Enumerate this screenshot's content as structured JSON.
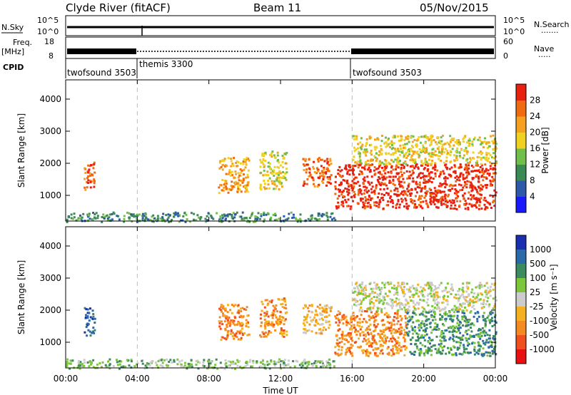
{
  "header": {
    "station": "Clyde River (fitACF)",
    "beam": "Beam 11",
    "date": "05/Nov/2015"
  },
  "top_strip": {
    "nsky_label": "N.Sky",
    "nsky_ticks": [
      "10^5",
      "10^0"
    ],
    "nsearch_label": "N.Search",
    "nsearch_ticks": [
      "10^5",
      "10^0"
    ],
    "freq_label": "Freq.",
    "freq_unit": "[MHz]",
    "freq_ticks": [
      "18",
      "8"
    ],
    "nave_label": "Nave",
    "nave_ticks": [
      "60",
      "0"
    ],
    "cpid_label": "CPID",
    "cpid_modes": [
      {
        "name": "twofsound 3503",
        "start_hr": 0
      },
      {
        "name": "themis 3300",
        "start_hr": 4
      },
      {
        "name": "twofsound 3503",
        "start_hr": 16
      }
    ]
  },
  "chart_data": [
    {
      "type": "heatmap",
      "panel": "power",
      "ylabel": "Slant Range [km]",
      "xlim": [
        0,
        24
      ],
      "ylim": [
        200,
        4600
      ],
      "yticks": [
        1000,
        2000,
        3000,
        4000
      ],
      "colorbar": {
        "label": "Power [dB]",
        "ticks": [
          "4",
          "8",
          "12",
          "16",
          "20",
          "24",
          "28"
        ],
        "colors": [
          "#1a1aff",
          "#2d5aa8",
          "#3a8a55",
          "#6fbf4a",
          "#f0d020",
          "#f5a020",
          "#f06a10",
          "#e82010"
        ]
      },
      "echo_regions": [
        {
          "t0": 1.0,
          "t1": 1.6,
          "r0": 1200,
          "r1": 2100,
          "level": 6
        },
        {
          "t0": 8.5,
          "t1": 10.2,
          "r0": 1100,
          "r1": 2200,
          "level": 5
        },
        {
          "t0": 10.8,
          "t1": 12.3,
          "r0": 1200,
          "r1": 2400,
          "level": 4
        },
        {
          "t0": 13.2,
          "t1": 14.8,
          "r0": 1300,
          "r1": 2200,
          "level": 6
        },
        {
          "t0": 15.0,
          "t1": 24.0,
          "r0": 600,
          "r1": 2000,
          "level": 7
        },
        {
          "t0": 16.0,
          "t1": 24.0,
          "r0": 2000,
          "r1": 2900,
          "level": 4
        },
        {
          "t0": 0.0,
          "t1": 15.0,
          "r0": 200,
          "r1": 500,
          "level": 2
        }
      ]
    },
    {
      "type": "heatmap",
      "panel": "velocity",
      "ylabel": "Slant Range [km]",
      "xlabel": "Time UT",
      "xlim": [
        0,
        24
      ],
      "ylim": [
        200,
        4600
      ],
      "yticks": [
        1000,
        2000,
        3000,
        4000
      ],
      "xticks": [
        "00:00",
        "04:00",
        "08:00",
        "12:00",
        "16:00",
        "20:00",
        "00:00"
      ],
      "colorbar": {
        "label": "Velocity [m s⁻¹]",
        "ticks": [
          "1000",
          "500",
          "100",
          "25",
          "-25",
          "-100",
          "-500",
          "-1000"
        ],
        "colors": [
          "#1a2fb0",
          "#2a6aa8",
          "#3c8a60",
          "#7ac83a",
          "#cccccc",
          "#f5b020",
          "#f58a20",
          "#f05020",
          "#e81010"
        ]
      },
      "echo_regions": [
        {
          "t0": 1.0,
          "t1": 1.6,
          "r0": 1200,
          "r1": 2100,
          "level": 1
        },
        {
          "t0": 8.5,
          "t1": 10.2,
          "r0": 1100,
          "r1": 2200,
          "level": 6
        },
        {
          "t0": 10.8,
          "t1": 12.3,
          "r0": 1200,
          "r1": 2400,
          "level": 6
        },
        {
          "t0": 13.2,
          "t1": 14.8,
          "r0": 1300,
          "r1": 2200,
          "level": 5
        },
        {
          "t0": 15.0,
          "t1": 19.0,
          "r0": 600,
          "r1": 2000,
          "level": 6
        },
        {
          "t0": 19.0,
          "t1": 24.0,
          "r0": 600,
          "r1": 2000,
          "level": 2
        },
        {
          "t0": 16.0,
          "t1": 24.0,
          "r0": 2000,
          "r1": 2900,
          "level": 4
        },
        {
          "t0": 0.0,
          "t1": 15.0,
          "r0": 200,
          "r1": 500,
          "level": 3
        }
      ]
    }
  ]
}
